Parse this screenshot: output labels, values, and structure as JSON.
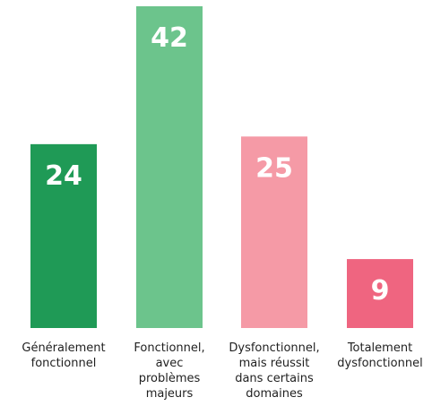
{
  "chart_data": {
    "type": "bar",
    "categories": [
      [
        "Généralement",
        "fonctionnel"
      ],
      [
        "Fonctionnel,",
        "avec",
        "problèmes",
        "majeurs"
      ],
      [
        "Dysfonctionnel,",
        "mais réussit",
        "dans certains",
        "domaines"
      ],
      [
        "Totalement",
        "dysfonctionnel"
      ]
    ],
    "values": [
      24,
      42,
      25,
      9
    ],
    "value_labels": [
      "24",
      "42",
      "25",
      "9"
    ],
    "colors": [
      "#1f9a56",
      "#6cc48c",
      "#f59aa6",
      "#ef6580"
    ],
    "ylim": [
      0,
      42
    ],
    "title": "",
    "xlabel": "",
    "ylabel": "",
    "grid": false,
    "legend": "none"
  }
}
